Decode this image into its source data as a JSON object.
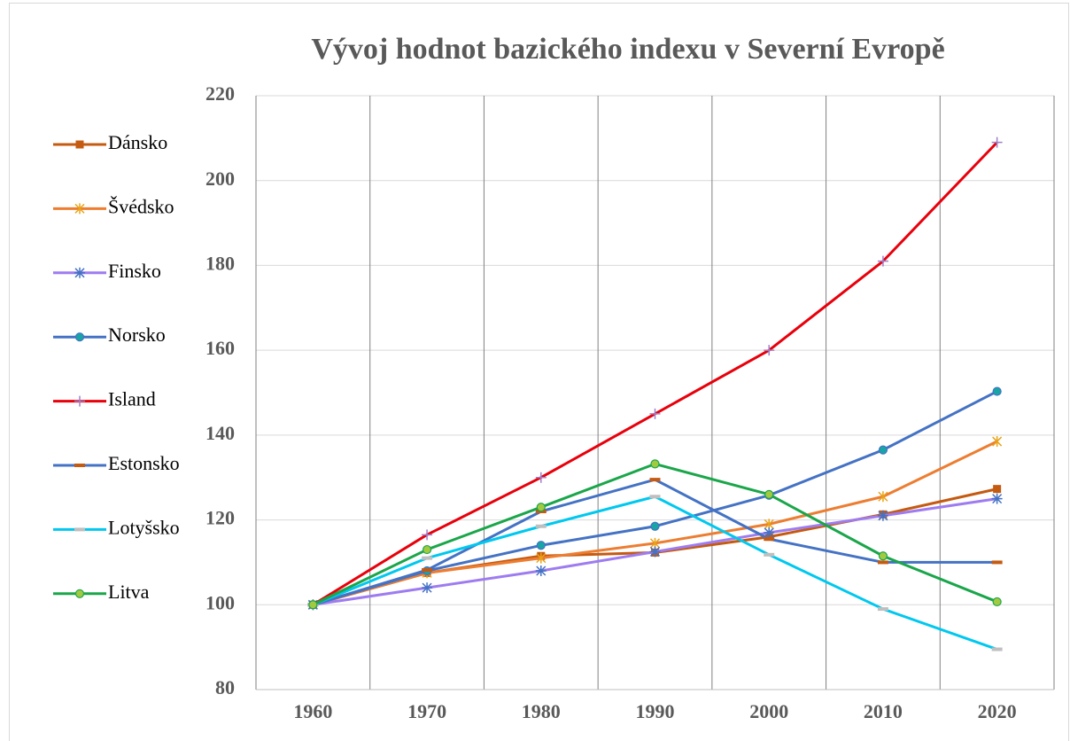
{
  "chart_data": {
    "type": "line",
    "title": "Vývoj hodnot bazického indexu v Severní Evropě",
    "categories": [
      "1960",
      "1970",
      "1980",
      "1990",
      "2000",
      "2010",
      "2020"
    ],
    "ylim": [
      80,
      220
    ],
    "yticks": [
      80,
      100,
      120,
      140,
      160,
      180,
      200,
      220
    ],
    "grid": true,
    "legend": "left",
    "series": [
      {
        "name": "Dánsko",
        "color": "#c55a11",
        "marker": "square",
        "marker_color": "#c55a11",
        "values": [
          100,
          107.5,
          111.5,
          112.3,
          116,
          121.3,
          127.3
        ]
      },
      {
        "name": "Švédsko",
        "color": "#ed7d31",
        "marker": "star",
        "marker_color": "#e8a317",
        "values": [
          100,
          107.5,
          111,
          114.5,
          119,
          125.5,
          138.5
        ]
      },
      {
        "name": "Finsko",
        "color": "#9e7cf0",
        "marker": "asterisk",
        "marker_color": "#4472c4",
        "values": [
          100,
          104,
          108,
          112.5,
          117,
          121,
          125
        ]
      },
      {
        "name": "Norsko",
        "color": "#4472c4",
        "marker": "circle",
        "marker_color": "#17a5a5",
        "values": [
          100,
          108,
          114,
          118.5,
          125.8,
          136.5,
          150.3
        ]
      },
      {
        "name": "Island",
        "color": "#e8000b",
        "marker": "plus",
        "marker_color": "#9e80c8",
        "values": [
          100,
          116.5,
          130,
          145,
          160,
          181,
          209
        ]
      },
      {
        "name": "Estonsko",
        "color": "#4472c4",
        "marker": "dash",
        "marker_color": "#c55a11",
        "values": [
          100,
          108.2,
          122,
          129.5,
          115.5,
          110,
          110
        ]
      },
      {
        "name": "Lotyšsko",
        "color": "#00c8ef",
        "marker": "dash",
        "marker_color": "#bfbfbf",
        "values": [
          100,
          111,
          118.5,
          125.5,
          111.8,
          99,
          89.5
        ]
      },
      {
        "name": "Litva",
        "color": "#1aa64a",
        "marker": "circle",
        "marker_color": "#a3c940",
        "values": [
          100,
          113,
          123,
          133.2,
          126,
          111.5,
          100.7
        ]
      }
    ]
  }
}
